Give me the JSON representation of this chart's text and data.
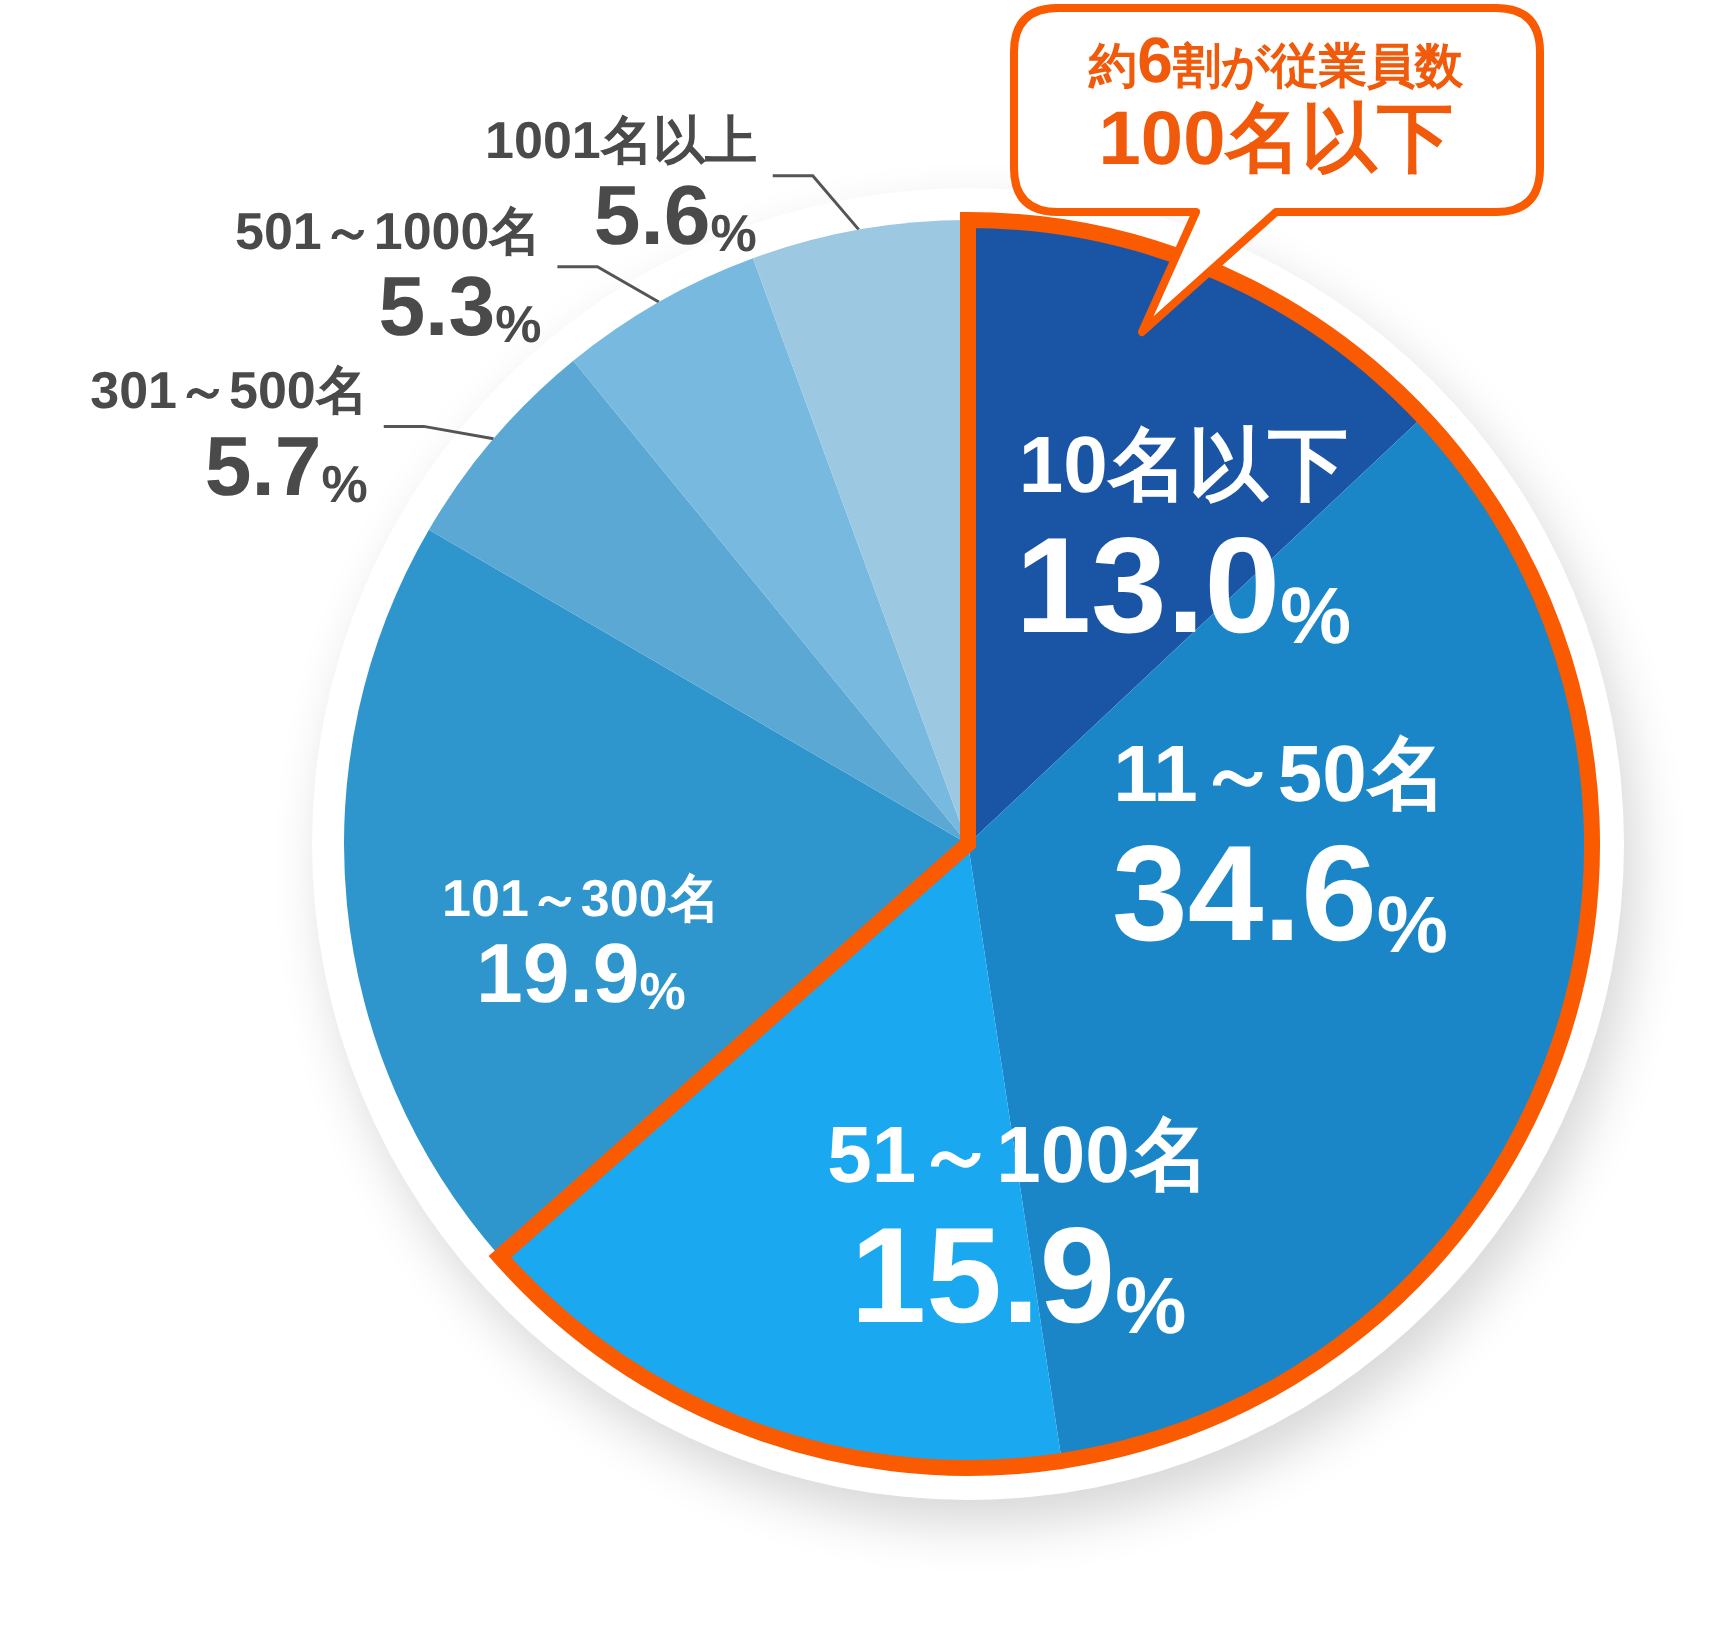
{
  "chart_data": {
    "type": "pie",
    "categories": [
      "10名以下",
      "11～50名",
      "51～100名",
      "101～300名",
      "301～500名",
      "501～1000名",
      "1001名以上"
    ],
    "values": [
      13.0,
      34.6,
      15.9,
      19.9,
      5.7,
      5.3,
      5.6
    ],
    "colors": [
      "#1a55a5",
      "#1a86c8",
      "#1aa8f0",
      "#2e96cd",
      "#5aa8d3",
      "#78b9e0",
      "#9dc8e1"
    ],
    "value_labels": [
      "13.0%",
      "34.6%",
      "15.9%",
      "19.9%",
      "5.7%",
      "5.3%",
      "5.6%"
    ],
    "annotations": [
      "約6割が従業員数\n100名以下"
    ]
  }
}
